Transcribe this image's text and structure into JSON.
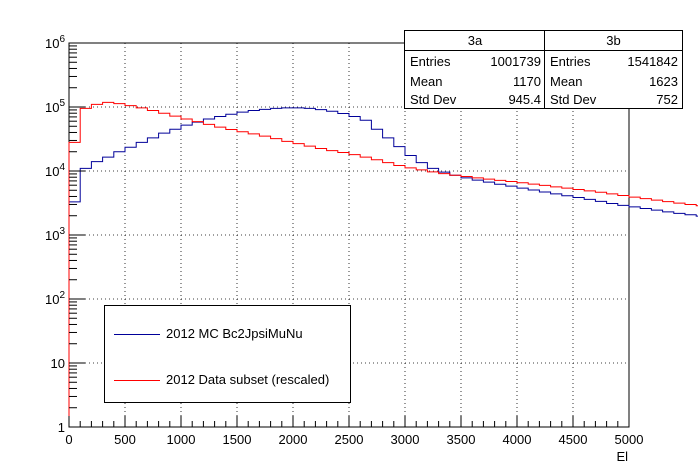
{
  "chart_data": {
    "type": "line",
    "xlabel": "El",
    "xlim": [
      0,
      5000
    ],
    "ylim": [
      1,
      1000000
    ],
    "y_scale": "log",
    "grid": true,
    "x_tick_labels": [
      "0",
      "500",
      "1000",
      "1500",
      "2000",
      "2500",
      "3000",
      "3500",
      "4000",
      "4500",
      "5000"
    ],
    "y_tick_labels": [
      "1",
      "10",
      "10^2",
      "10^3",
      "10^4",
      "10^5",
      "10^6"
    ],
    "bin_width": 100,
    "series": [
      {
        "name": "2012 MC Bc2JpsiMuNu",
        "color": "#000099",
        "values": [
          3300,
          11000,
          14000,
          16500,
          20000,
          23500,
          28000,
          33000,
          39000,
          45000,
          52000,
          58000,
          65000,
          71000,
          77000,
          83000,
          88000,
          92000,
          95000,
          97000,
          97000,
          95000,
          91000,
          86000,
          79000,
          71000,
          62000,
          45000,
          33000,
          24000,
          17500,
          13500,
          11000,
          9600,
          8600,
          7800,
          7200,
          6700,
          6200,
          5800,
          5400,
          5050,
          4700,
          4400,
          4100,
          3850,
          3600,
          3350,
          3100,
          2900,
          2750,
          2600,
          2450,
          2300,
          2180,
          2070,
          1970,
          1880,
          1800,
          1720
        ]
      },
      {
        "name": "2012 Data subset (rescaled)",
        "color": "#ff0000",
        "values": [
          28000,
          95000,
          110000,
          118000,
          113000,
          105000,
          97000,
          88000,
          80000,
          72000,
          65000,
          59000,
          53500,
          48500,
          44500,
          41000,
          38000,
          35000,
          32000,
          29000,
          26800,
          24500,
          22500,
          20800,
          19500,
          18000,
          16500,
          15000,
          13500,
          12200,
          11200,
          10400,
          9700,
          9100,
          8600,
          8200,
          7800,
          7450,
          7150,
          6850,
          6550,
          6250,
          5950,
          5650,
          5400,
          5150,
          4900,
          4650,
          4400,
          4150,
          3900,
          3700,
          3500,
          3320,
          3150,
          3000,
          2870,
          2760,
          2660,
          2580
        ]
      }
    ]
  },
  "legend": {
    "entries": [
      {
        "label": "2012 MC Bc2JpsiMuNu",
        "color": "#000099"
      },
      {
        "label": "2012 Data subset (rescaled)",
        "color": "#ff0000"
      }
    ]
  },
  "stats": [
    {
      "title": "3a",
      "rows": [
        {
          "key": "Entries",
          "value": "1001739"
        },
        {
          "key": "Mean",
          "value": "1170"
        },
        {
          "key": "Std Dev",
          "value": "945.4"
        }
      ]
    },
    {
      "title": "3b",
      "rows": [
        {
          "key": "Entries",
          "value": "1541842"
        },
        {
          "key": "Mean",
          "value": "1623"
        },
        {
          "key": "Std Dev",
          "value": "752"
        }
      ]
    }
  ]
}
